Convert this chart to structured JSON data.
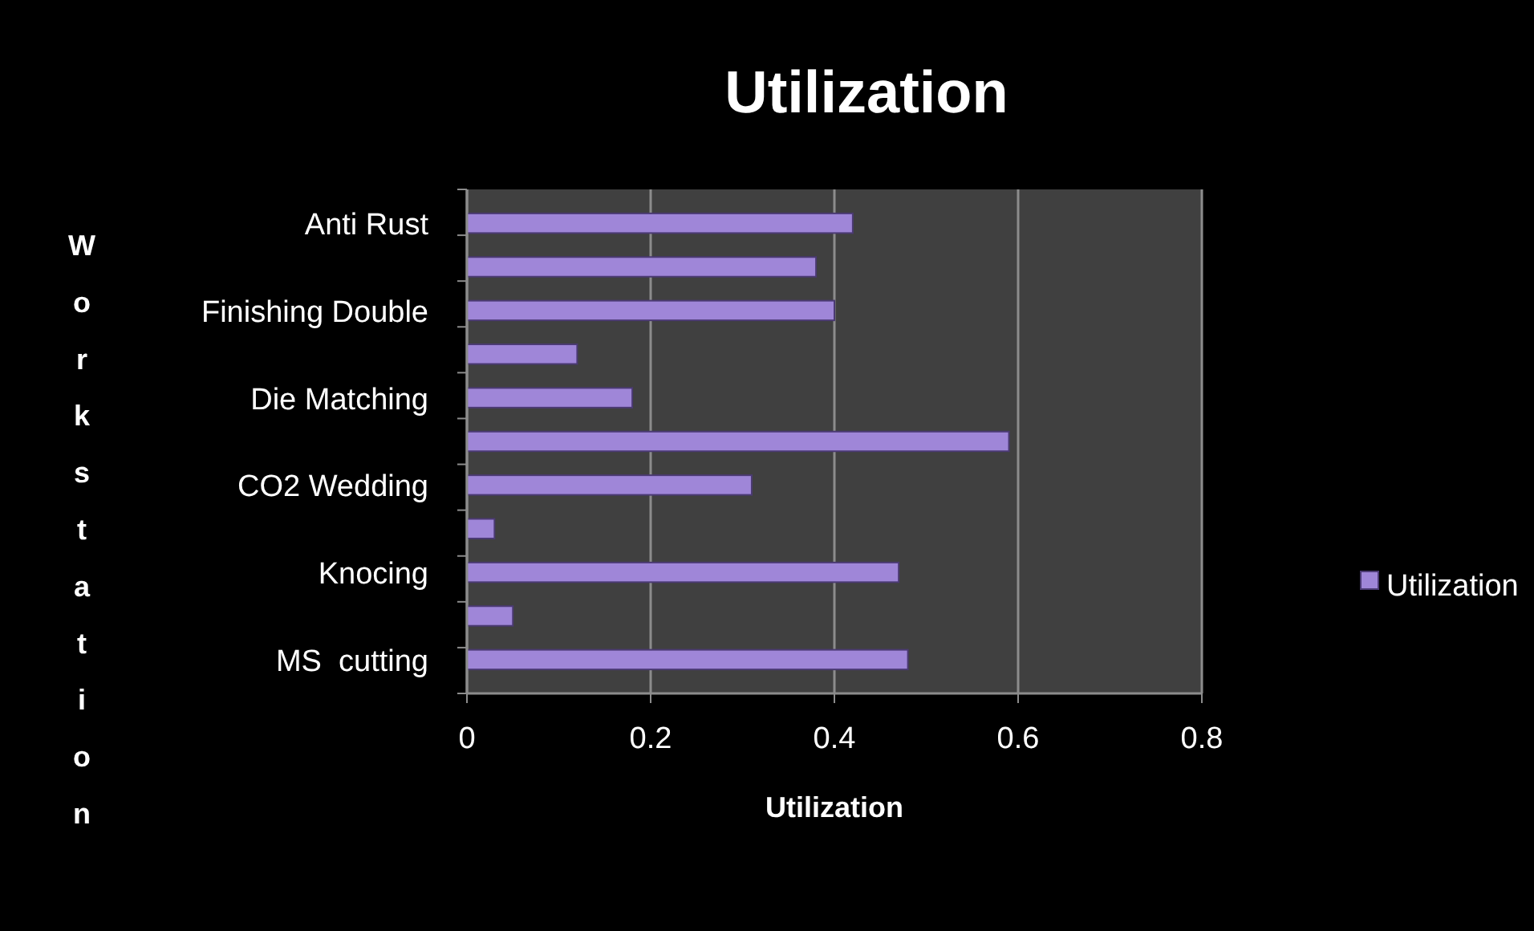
{
  "chart_data": {
    "type": "bar",
    "orientation": "horizontal",
    "title": "Utilization",
    "xlabel": "Utilization",
    "ylabel": "Workstation",
    "categories": [
      "Anti Rust",
      null,
      "Finishing Double",
      null,
      "Die Matching",
      null,
      "CO2 Wedding",
      null,
      "Knocing",
      null,
      "MS  cutting"
    ],
    "series": [
      {
        "name": "Utilization",
        "color": "#9f86d8",
        "values": [
          0.42,
          0.38,
          0.4,
          0.12,
          0.18,
          0.59,
          0.31,
          0.03,
          0.47,
          0.05,
          0.48
        ]
      }
    ],
    "xlim": [
      0,
      0.8
    ],
    "xticks": [
      0,
      0.2,
      0.4,
      0.6,
      0.8
    ],
    "grid": "x",
    "legend": "right"
  }
}
